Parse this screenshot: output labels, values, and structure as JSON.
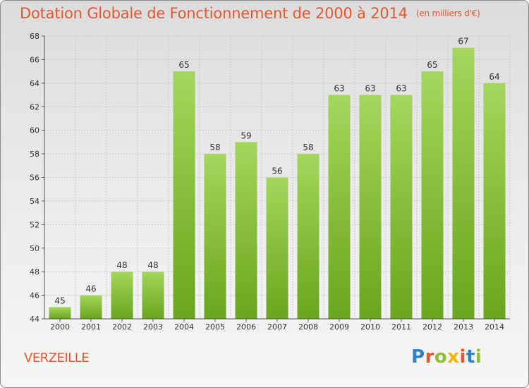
{
  "title": "Dotation Globale de Fonctionnement de 2000 à 2014",
  "unit": "(en milliers d'€)",
  "commune": "VERZEILLE",
  "logo": {
    "text": "Proxiti"
  },
  "colors": {
    "title": "#e2572e",
    "bar_light": "#a4d65b",
    "bar_dark": "#6aa51d",
    "grid": "#c8c8c8"
  },
  "chart_data": {
    "type": "bar",
    "categories": [
      "2000",
      "2001",
      "2002",
      "2003",
      "2004",
      "2005",
      "2006",
      "2007",
      "2008",
      "2009",
      "2010",
      "2011",
      "2012",
      "2013",
      "2014"
    ],
    "values": [
      45,
      46,
      48,
      48,
      65,
      58,
      59,
      56,
      58,
      63,
      63,
      63,
      65,
      67,
      64
    ],
    "ylim": [
      44,
      68
    ],
    "yticks": [
      44,
      46,
      48,
      50,
      52,
      54,
      56,
      58,
      60,
      62,
      64,
      66,
      68
    ],
    "grid": true,
    "data_labels": true
  }
}
